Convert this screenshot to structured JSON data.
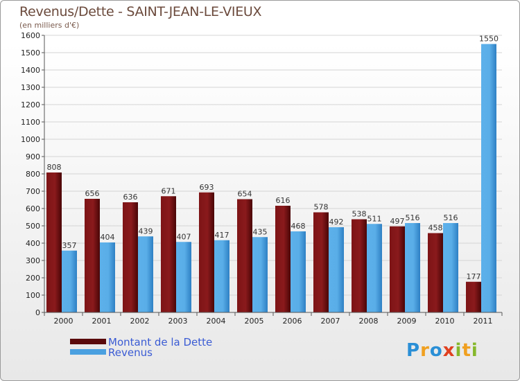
{
  "title": "Revenus/Dette - SAINT-JEAN-LE-VIEUX",
  "subtitle": "(en milliers d'€)",
  "logo": {
    "letters": [
      {
        "ch": "P",
        "color": "#2a8fd6"
      },
      {
        "ch": "r",
        "color": "#f0a020"
      },
      {
        "ch": "o",
        "color": "#2a8fd6"
      },
      {
        "ch": "x",
        "color": "#e04020"
      },
      {
        "ch": "i",
        "color": "#86b82c"
      },
      {
        "ch": "t",
        "color": "#f0a020"
      },
      {
        "ch": "i",
        "color": "#86b82c"
      }
    ]
  },
  "chart_data": {
    "type": "bar",
    "categories": [
      "2000",
      "2001",
      "2002",
      "2003",
      "2004",
      "2005",
      "2006",
      "2007",
      "2008",
      "2009",
      "2010",
      "2011"
    ],
    "series": [
      {
        "name": "Montant de la Dette",
        "color": "#6a0f10",
        "values": [
          808,
          656,
          636,
          671,
          693,
          654,
          616,
          578,
          538,
          497,
          458,
          177
        ]
      },
      {
        "name": "Revenus",
        "color": "#4aa0e0",
        "values": [
          357,
          404,
          439,
          407,
          417,
          435,
          468,
          492,
          511,
          516,
          516,
          1550
        ]
      }
    ],
    "ylim": [
      0,
      1600
    ],
    "yticks": [
      0,
      100,
      200,
      300,
      400,
      500,
      600,
      700,
      800,
      900,
      1000,
      1100,
      1200,
      1300,
      1400,
      1500,
      1600
    ],
    "legend": "bottom-left"
  }
}
